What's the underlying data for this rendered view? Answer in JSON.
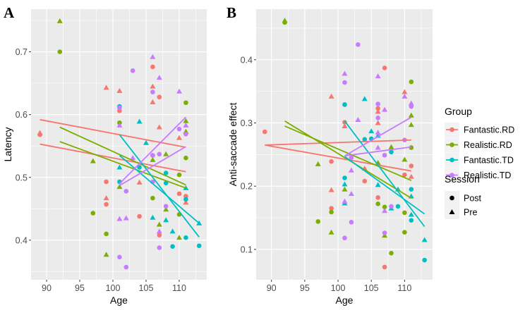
{
  "colors": {
    "Fantastic.RD": "#F8766D",
    "Realistic.RD": "#7CAE00",
    "Fantastic.TD": "#00BFC4",
    "Realistic.TD": "#C77CFF",
    "panel_bg": "#EBEBEB",
    "grid": "#FFFFFF"
  },
  "legend": {
    "group_title": "Group",
    "groups": [
      "Fantastic.RD",
      "Realistic.RD",
      "Fantastic.TD",
      "Realistic.TD"
    ],
    "session_title": "Session",
    "sessions": [
      "Post",
      "Pre"
    ]
  },
  "chart_data": [
    {
      "type": "scatter",
      "panel_label": "A",
      "xlabel": "Age",
      "ylabel": "Latency",
      "xlim": [
        87.66,
        114.15
      ],
      "ylim": [
        0.337,
        0.768
      ],
      "xticks": [
        90,
        95,
        100,
        105,
        110
      ],
      "yticks": [
        0.4,
        0.5,
        0.6,
        0.7
      ],
      "grid": true,
      "series": [
        {
          "name": "Fantastic.RD",
          "points": [
            [
              89,
              0.571,
              "Pre"
            ],
            [
              89,
              0.568,
              "Post"
            ],
            [
              99,
              0.643,
              "Pre"
            ],
            [
              101,
              0.638,
              "Pre"
            ],
            [
              101,
              0.606,
              "Post"
            ],
            [
              99,
              0.493,
              "Post"
            ],
            [
              99,
              0.467,
              "Pre"
            ],
            [
              99,
              0.457,
              "Post"
            ],
            [
              106,
              0.676,
              "Post"
            ],
            [
              106,
              0.645,
              "Pre"
            ],
            [
              106,
              0.62,
              "Pre"
            ],
            [
              107,
              0.628,
              "Post"
            ],
            [
              107,
              0.58,
              "Pre"
            ],
            [
              104,
              0.492,
              "Pre"
            ],
            [
              104,
              0.438,
              "Post"
            ],
            [
              107,
              0.408,
              "Post"
            ],
            [
              110,
              0.563,
              "Pre"
            ],
            [
              110,
              0.474,
              "Post"
            ],
            [
              111,
              0.47,
              "Post"
            ],
            [
              111,
              0.46,
              "Pre"
            ]
          ],
          "fits": [
            [
              89,
              0.592,
              111,
              0.548
            ],
            [
              89,
              0.553,
              111,
              0.509
            ]
          ]
        },
        {
          "name": "Realistic.RD",
          "points": [
            [
              92,
              0.749,
              "Pre"
            ],
            [
              92,
              0.7,
              "Post"
            ],
            [
              97,
              0.526,
              "Pre"
            ],
            [
              97,
              0.443,
              "Post"
            ],
            [
              99,
              0.41,
              "Post"
            ],
            [
              99,
              0.377,
              "Pre"
            ],
            [
              101,
              0.587,
              "Post"
            ],
            [
              101,
              0.485,
              "Pre"
            ],
            [
              106,
              0.467,
              "Post"
            ],
            [
              106,
              0.528,
              "Pre"
            ],
            [
              107,
              0.425,
              "Pre"
            ],
            [
              108,
              0.537,
              "Pre"
            ],
            [
              108,
              0.449,
              "Pre"
            ],
            [
              110,
              0.504,
              "Post"
            ],
            [
              110,
              0.441,
              "Post"
            ],
            [
              110,
              0.404,
              "Pre"
            ],
            [
              111,
              0.619,
              "Post"
            ],
            [
              111,
              0.59,
              "Pre"
            ],
            [
              111,
              0.573,
              "Pre"
            ],
            [
              111,
              0.531,
              "Post"
            ]
          ],
          "fits": [
            [
              92,
              0.58,
              111,
              0.488
            ],
            [
              92,
              0.557,
              111,
              0.483
            ]
          ]
        },
        {
          "name": "Fantastic.TD",
          "points": [
            [
              101,
              0.613,
              "Post"
            ],
            [
              101,
              0.516,
              "Pre"
            ],
            [
              101,
              0.493,
              "Post"
            ],
            [
              104,
              0.589,
              "Pre"
            ],
            [
              104,
              0.516,
              "Post"
            ],
            [
              105,
              0.555,
              "Pre"
            ],
            [
              106,
              0.535,
              "Post"
            ],
            [
              106,
              0.436,
              "Pre"
            ],
            [
              108,
              0.507,
              "Post"
            ],
            [
              108,
              0.491,
              "Post"
            ],
            [
              108,
              0.432,
              "Pre"
            ],
            [
              109,
              0.414,
              "Pre"
            ],
            [
              109,
              0.39,
              "Post"
            ],
            [
              111,
              0.483,
              "Pre"
            ],
            [
              111,
              0.465,
              "Post"
            ],
            [
              111,
              0.404,
              "Post"
            ],
            [
              113,
              0.427,
              "Pre"
            ],
            [
              113,
              0.391,
              "Post"
            ]
          ],
          "fits": [
            [
              101,
              0.568,
              113,
              0.405
            ],
            [
              101,
              0.535,
              113,
              0.427
            ]
          ]
        },
        {
          "name": "Realistic.TD",
          "points": [
            [
              103,
              0.67,
              "Post"
            ],
            [
              106,
              0.692,
              "Pre"
            ],
            [
              106,
              0.636,
              "Post"
            ],
            [
              107,
              0.659,
              "Pre"
            ],
            [
              101,
              0.583,
              "Pre"
            ],
            [
              101,
              0.611,
              "Post"
            ],
            [
              103,
              0.531,
              "Pre"
            ],
            [
              102,
              0.478,
              "Post"
            ],
            [
              101,
              0.434,
              "Pre"
            ],
            [
              102,
              0.435,
              "Pre"
            ],
            [
              101,
              0.373,
              "Post"
            ],
            [
              102,
              0.357,
              "Post"
            ],
            [
              106,
              0.535,
              "Post"
            ],
            [
              107,
              0.537,
              "Post"
            ],
            [
              106,
              0.493,
              "Post"
            ],
            [
              108,
              0.454,
              "Post"
            ],
            [
              107,
              0.414,
              "Pre"
            ],
            [
              107,
              0.388,
              "Post"
            ],
            [
              110,
              0.637,
              "Pre"
            ],
            [
              110,
              0.577,
              "Post"
            ],
            [
              111,
              0.583,
              "Pre"
            ],
            [
              111,
              0.569,
              "Post"
            ]
          ],
          "fits": [
            [
              101,
              0.49,
              111,
              0.596
            ],
            [
              101,
              0.487,
              111,
              0.549
            ]
          ]
        }
      ]
    },
    {
      "type": "scatter",
      "panel_label": "B",
      "xlabel": "Age",
      "ylabel": "Anti-saccade effect",
      "xlim": [
        87.7,
        114.2
      ],
      "ylim": [
        0.052,
        0.48
      ],
      "xticks": [
        90,
        95,
        100,
        105,
        110
      ],
      "yticks": [
        0.1,
        0.2,
        0.3,
        0.4
      ],
      "grid": true,
      "series": [
        {
          "name": "Fantastic.RD",
          "points": [
            [
              89,
              0.286,
              "Post"
            ],
            [
              99,
              0.342,
              "Pre"
            ],
            [
              99,
              0.239,
              "Post"
            ],
            [
              99,
              0.194,
              "Pre"
            ],
            [
              99,
              0.165,
              "Post"
            ],
            [
              101,
              0.301,
              "Post"
            ],
            [
              101,
              0.295,
              "Pre"
            ],
            [
              104,
              0.208,
              "Post"
            ],
            [
              104,
              0.228,
              "Pre"
            ],
            [
              107,
              0.387,
              "Post"
            ],
            [
              106,
              0.323,
              "Post"
            ],
            [
              106,
              0.318,
              "Pre"
            ],
            [
              106,
              0.3,
              "Pre"
            ],
            [
              106,
              0.182,
              "Post"
            ],
            [
              107,
              0.072,
              "Post"
            ],
            [
              110,
              0.349,
              "Pre"
            ],
            [
              110,
              0.218,
              "Post"
            ],
            [
              111,
              0.232,
              "Post"
            ],
            [
              111,
              0.215,
              "Pre"
            ]
          ],
          "fits": [
            [
              89,
              0.265,
              111,
              0.273
            ],
            [
              89,
              0.265,
              111,
              0.224
            ]
          ]
        },
        {
          "name": "Realistic.RD",
          "points": [
            [
              92,
              0.462,
              "Pre"
            ],
            [
              92,
              0.459,
              "Post"
            ],
            [
              97,
              0.235,
              "Pre"
            ],
            [
              97,
              0.144,
              "Post"
            ],
            [
              99,
              0.159,
              "Post"
            ],
            [
              99,
              0.127,
              "Pre"
            ],
            [
              101,
              0.329,
              "Post"
            ],
            [
              101,
              0.195,
              "Pre"
            ],
            [
              106,
              0.237,
              "Pre"
            ],
            [
              106,
              0.172,
              "Post"
            ],
            [
              107,
              0.167,
              "Post"
            ],
            [
              107,
              0.122,
              "Pre"
            ],
            [
              108,
              0.094,
              "Post"
            ],
            [
              108,
              0.262,
              "Pre"
            ],
            [
              110,
              0.242,
              "Pre"
            ],
            [
              110,
              0.158,
              "Post"
            ],
            [
              110,
              0.127,
              "Post"
            ],
            [
              111,
              0.365,
              "Post"
            ],
            [
              111,
              0.312,
              "Pre"
            ],
            [
              111,
              0.297,
              "Pre"
            ],
            [
              111,
              0.261,
              "Post"
            ]
          ],
          "fits": [
            [
              92,
              0.303,
              111,
              0.181
            ],
            [
              92,
              0.295,
              111,
              0.209
            ]
          ]
        },
        {
          "name": "Fantastic.TD",
          "points": [
            [
              101,
              0.329,
              "Post"
            ],
            [
              101,
              0.213,
              "Post"
            ],
            [
              101,
              0.203,
              "Pre"
            ],
            [
              101,
              0.173,
              "Pre"
            ],
            [
              104,
              0.338,
              "Pre"
            ],
            [
              104,
              0.274,
              "Post"
            ],
            [
              105,
              0.287,
              "Pre"
            ],
            [
              105,
              0.275,
              "Post"
            ],
            [
              106,
              0.28,
              "Pre"
            ],
            [
              106,
              0.202,
              "Pre"
            ],
            [
              108,
              0.254,
              "Post"
            ],
            [
              108,
              0.165,
              "Pre"
            ],
            [
              109,
              0.195,
              "Pre"
            ],
            [
              109,
              0.168,
              "Post"
            ],
            [
              111,
              0.195,
              "Post"
            ],
            [
              111,
              0.184,
              "Pre"
            ],
            [
              111,
              0.155,
              "Pre"
            ],
            [
              111,
              0.146,
              "Post"
            ],
            [
              113,
              0.115,
              "Pre"
            ],
            [
              113,
              0.083,
              "Post"
            ]
          ],
          "fits": [
            [
              101,
              0.303,
              113,
              0.136
            ],
            [
              101,
              0.247,
              113,
              0.156
            ]
          ]
        },
        {
          "name": "Realistic.TD",
          "points": [
            [
              103,
              0.424,
              "Post"
            ],
            [
              101,
              0.378,
              "Pre"
            ],
            [
              101,
              0.364,
              "Post"
            ],
            [
              103,
              0.305,
              "Pre"
            ],
            [
              102,
              0.225,
              "Pre"
            ],
            [
              102,
              0.245,
              "Post"
            ],
            [
              102,
              0.188,
              "Pre"
            ],
            [
              101,
              0.176,
              "Pre"
            ],
            [
              102,
              0.143,
              "Post"
            ],
            [
              101,
              0.118,
              "Post"
            ],
            [
              106,
              0.374,
              "Pre"
            ],
            [
              106,
              0.33,
              "Post"
            ],
            [
              106,
              0.308,
              "Post"
            ],
            [
              106,
              0.285,
              "Pre"
            ],
            [
              106,
              0.261,
              "Pre"
            ],
            [
              107,
              0.321,
              "Pre"
            ],
            [
              107,
              0.249,
              "Post"
            ],
            [
              107,
              0.161,
              "Pre"
            ],
            [
              107,
              0.126,
              "Post"
            ],
            [
              108,
              0.168,
              "Post"
            ],
            [
              110,
              0.342,
              "Pre"
            ],
            [
              110,
              0.273,
              "Post"
            ],
            [
              111,
              0.331,
              "Pre"
            ],
            [
              111,
              0.326,
              "Post"
            ]
          ],
          "fits": [
            [
              101,
              0.248,
              111,
              0.309
            ],
            [
              101,
              0.248,
              111,
              0.262
            ]
          ]
        }
      ]
    }
  ]
}
